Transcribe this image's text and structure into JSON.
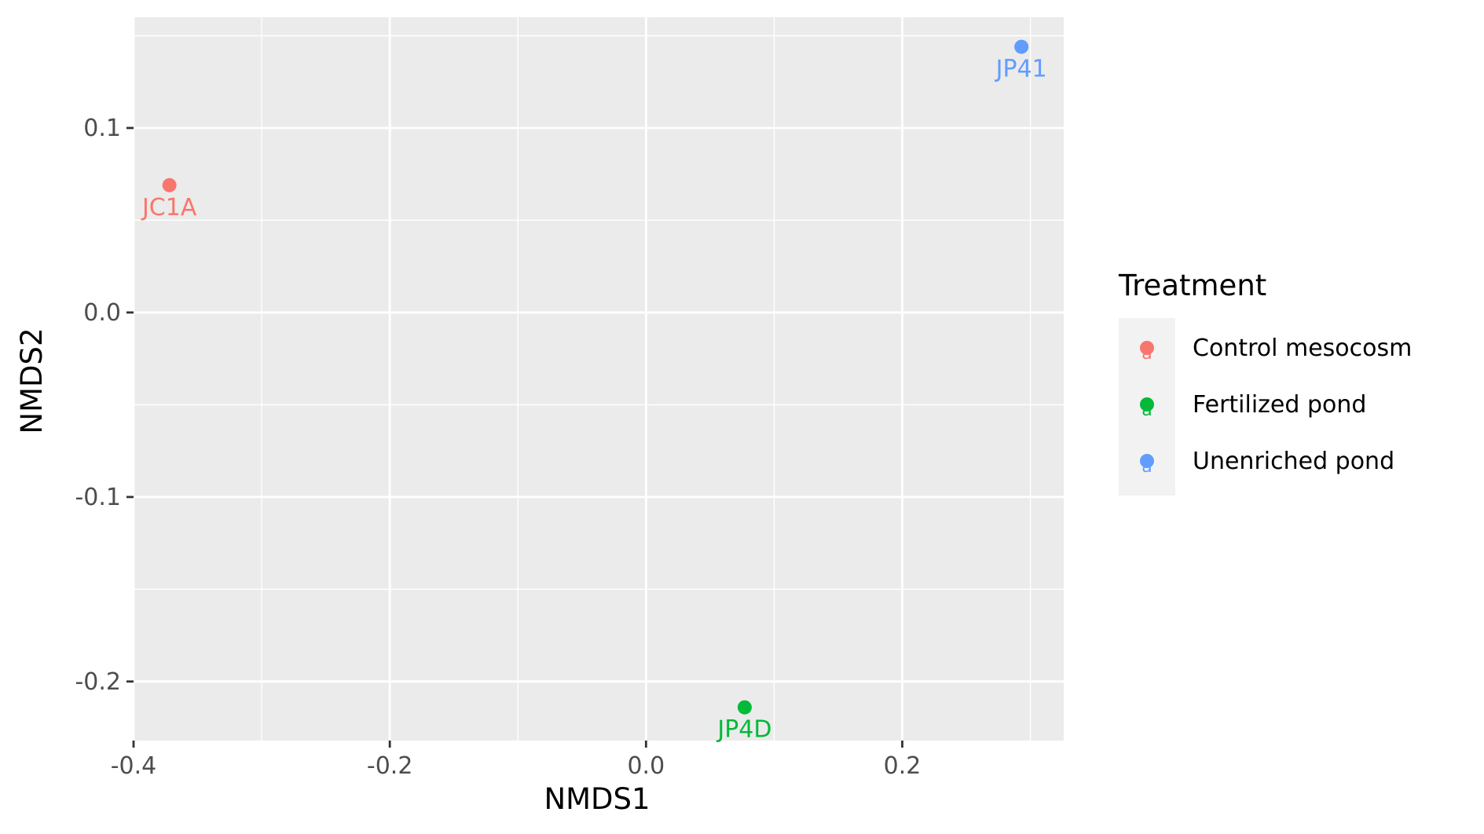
{
  "chart_data": {
    "type": "scatter",
    "title": "",
    "xlabel": "NMDS1",
    "ylabel": "NMDS2",
    "xlim": [
      -0.4,
      0.326
    ],
    "ylim": [
      -0.232,
      0.16
    ],
    "x_major_ticks": [
      -0.4,
      -0.2,
      0.0,
      0.2
    ],
    "x_tick_labels": [
      "-0.4",
      "-0.2",
      "0.0",
      "0.2"
    ],
    "x_minor_ticks": [
      -0.3,
      -0.1,
      0.1,
      0.3
    ],
    "y_major_ticks": [
      -0.2,
      -0.1,
      0.0,
      0.1
    ],
    "y_tick_labels": [
      "-0.2",
      "-0.1",
      "0.0",
      "0.1"
    ],
    "y_minor_ticks": [
      -0.15,
      -0.05,
      0.05,
      0.15
    ],
    "grid": true,
    "legend": {
      "title": "Treatment",
      "position": "right",
      "entries": [
        {
          "label": "Control mesocosm",
          "color": "#F8766D",
          "key_glyph": "a"
        },
        {
          "label": "Fertilized pond",
          "color": "#00BA38",
          "key_glyph": "a"
        },
        {
          "label": "Unenriched pond",
          "color": "#619CFF",
          "key_glyph": "a"
        }
      ]
    },
    "series": [
      {
        "name": "Control mesocosm",
        "color": "#F8766D",
        "points": [
          {
            "x": -0.372,
            "y": 0.069,
            "label": "JC1A"
          }
        ]
      },
      {
        "name": "Fertilized pond",
        "color": "#00BA38",
        "points": [
          {
            "x": 0.077,
            "y": -0.214,
            "label": "JP4D"
          }
        ]
      },
      {
        "name": "Unenriched pond",
        "color": "#619CFF",
        "points": [
          {
            "x": 0.293,
            "y": 0.144,
            "label": "JP41"
          }
        ]
      }
    ]
  }
}
